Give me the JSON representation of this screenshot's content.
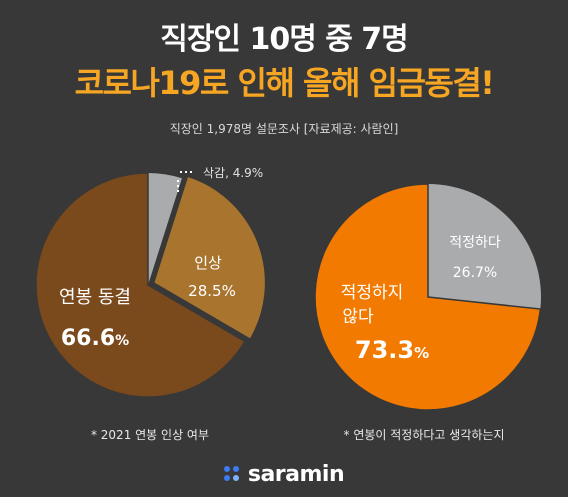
{
  "headline": {
    "line1": "직장인 10명 중 7명",
    "line2": "코로나19로 인해 올해 임금동결!"
  },
  "subtitle": "직장인 1,978명 설문조사 [자료제공: 사람인]",
  "chart_data": [
    {
      "type": "pie",
      "caption": "* 2021 연봉 인상 여부",
      "slices": [
        {
          "label": "연봉 동결",
          "value": 66.6,
          "display": "66.6",
          "unit": "%",
          "color": "#7b4a1c"
        },
        {
          "label": "인상",
          "value": 28.5,
          "display": "28.5",
          "unit": "%",
          "color": "#a8742e"
        },
        {
          "label": "삭감",
          "value": 4.9,
          "display": "삭감, 4.9%",
          "unit": "%",
          "color": "#a9abad"
        }
      ]
    },
    {
      "type": "pie",
      "caption": "* 연봉이 적정하다고 생각하는지",
      "slices": [
        {
          "label": "적정하지 않다",
          "label_lines": [
            "적정하지",
            "않다"
          ],
          "value": 73.3,
          "display": "73.3",
          "unit": "%",
          "color": "#f27a00"
        },
        {
          "label": "적정하다",
          "value": 26.7,
          "display": "26.7",
          "unit": "%",
          "color": "#a9abad"
        }
      ]
    }
  ],
  "logo": {
    "text": "saramin",
    "dot_colors": [
      "#3c7bf0",
      "#3c7bf0",
      "#3c7bf0",
      "#7fb2ff"
    ]
  }
}
